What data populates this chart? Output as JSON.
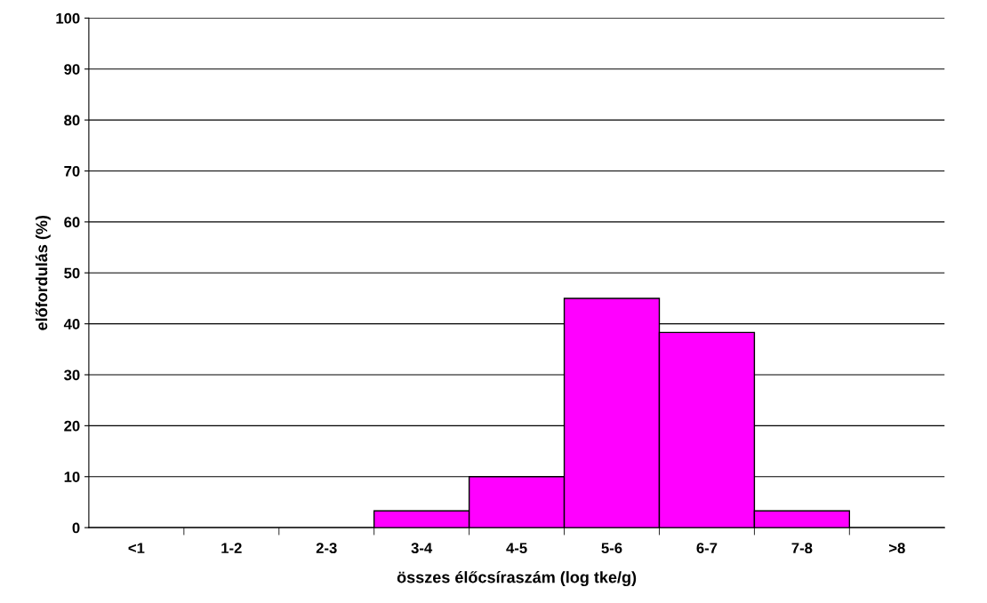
{
  "chart_data": {
    "type": "bar",
    "xlabel": "összes élőcsíraszám (log tke/g)",
    "ylabel": "előfordulás (%)",
    "categories": [
      "<1",
      "1-2",
      "2-3",
      "3-4",
      "4-5",
      "5-6",
      "6-7",
      "7-8",
      ">8"
    ],
    "values": [
      0,
      0,
      0,
      3.3,
      10,
      45,
      38.3,
      3.3,
      0
    ],
    "color": "#ff00ff",
    "ylim": [
      0,
      100
    ],
    "yticks": [
      0,
      10,
      20,
      30,
      40,
      50,
      60,
      70,
      80,
      90,
      100
    ],
    "grid": "y",
    "legend": false
  }
}
